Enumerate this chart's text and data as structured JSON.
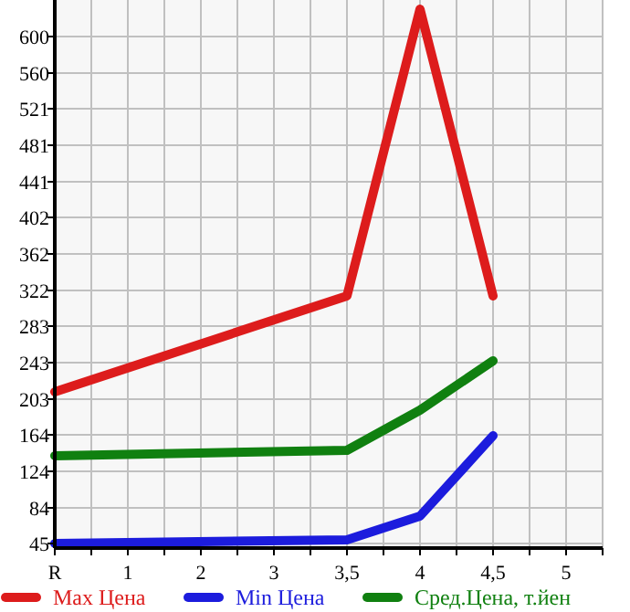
{
  "chart_data": {
    "type": "line",
    "categories": [
      "R",
      "1",
      "2",
      "3",
      "3,5",
      "4",
      "4,5",
      "5"
    ],
    "series": [
      {
        "name": "Max Цена",
        "color": "#dd1c1c",
        "values": [
          211,
          null,
          null,
          null,
          316,
          630,
          316,
          null
        ]
      },
      {
        "name": "Min Цена",
        "color": "#1c1cdd",
        "values": [
          45,
          null,
          null,
          null,
          49,
          75,
          163,
          null
        ]
      },
      {
        "name": "Сред.Цена, т.йен",
        "color": "#108010",
        "values": [
          141,
          null,
          null,
          null,
          147,
          191,
          245,
          null
        ]
      }
    ],
    "ylim": [
      40,
      640
    ],
    "yticks": [
      45,
      84,
      124,
      164,
      203,
      243,
      283,
      322,
      362,
      402,
      441,
      481,
      521,
      560,
      600
    ],
    "grid": true,
    "legend": "bottom",
    "marker": "none",
    "line_style": "solid"
  }
}
